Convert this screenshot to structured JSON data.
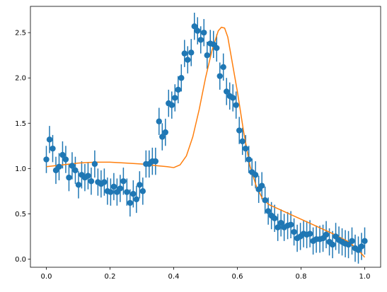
{
  "chart_data": {
    "type": "scatter",
    "title": "",
    "xlabel": "",
    "ylabel": "",
    "xlim": [
      -0.05,
      1.05
    ],
    "ylim": [
      -0.09,
      2.79
    ],
    "xticks": [
      0.0,
      0.2,
      0.4,
      0.6,
      0.8,
      1.0
    ],
    "xtick_labels": [
      "0.0",
      "0.2",
      "0.4",
      "0.6",
      "0.8",
      "1.0"
    ],
    "yticks": [
      0.0,
      0.5,
      1.0,
      1.5,
      2.0,
      2.5
    ],
    "ytick_labels": [
      "0.0",
      "0.5",
      "1.0",
      "1.5",
      "2.0",
      "2.5"
    ],
    "grid": false,
    "legend": "none",
    "colors": {
      "points": "#1f77b4",
      "curve": "#ff7f0e",
      "axes": "#000000"
    },
    "series": [
      {
        "kind": "errorbar",
        "x": [
          0.0,
          0.01,
          0.02,
          0.03,
          0.04,
          0.051,
          0.061,
          0.071,
          0.081,
          0.091,
          0.101,
          0.111,
          0.121,
          0.131,
          0.141,
          0.152,
          0.162,
          0.172,
          0.182,
          0.192,
          0.202,
          0.212,
          0.222,
          0.232,
          0.242,
          0.253,
          0.263,
          0.273,
          0.283,
          0.293,
          0.303,
          0.313,
          0.323,
          0.333,
          0.343,
          0.354,
          0.364,
          0.374,
          0.384,
          0.394,
          0.404,
          0.414,
          0.424,
          0.434,
          0.444,
          0.455,
          0.465,
          0.475,
          0.485,
          0.495,
          0.505,
          0.515,
          0.525,
          0.535,
          0.545,
          0.556,
          0.566,
          0.576,
          0.586,
          0.596,
          0.606,
          0.616,
          0.626,
          0.636,
          0.646,
          0.657,
          0.667,
          0.677,
          0.687,
          0.697,
          0.707,
          0.717,
          0.727,
          0.737,
          0.747,
          0.758,
          0.768,
          0.778,
          0.788,
          0.798,
          0.808,
          0.818,
          0.828,
          0.838,
          0.848,
          0.859,
          0.869,
          0.879,
          0.889,
          0.899,
          0.909,
          0.919,
          0.929,
          0.939,
          0.949,
          0.96,
          0.97,
          0.98,
          0.99,
          1.0
        ],
        "y": [
          1.1,
          1.32,
          1.22,
          0.98,
          1.02,
          1.15,
          1.1,
          0.9,
          1.03,
          0.98,
          0.82,
          0.93,
          0.9,
          0.92,
          0.86,
          1.05,
          0.85,
          0.83,
          0.85,
          0.75,
          0.74,
          0.8,
          0.74,
          0.78,
          0.86,
          0.74,
          0.62,
          0.72,
          0.66,
          0.82,
          0.75,
          1.05,
          1.05,
          1.08,
          1.08,
          1.52,
          1.35,
          1.4,
          1.72,
          1.7,
          1.78,
          1.87,
          2.0,
          2.27,
          2.2,
          2.28,
          2.57,
          2.52,
          2.42,
          2.5,
          2.25,
          2.38,
          2.37,
          2.33,
          2.02,
          2.12,
          1.85,
          1.8,
          1.78,
          1.7,
          1.42,
          1.3,
          1.22,
          1.1,
          0.96,
          0.93,
          0.77,
          0.81,
          0.65,
          0.53,
          0.48,
          0.45,
          0.35,
          0.4,
          0.35,
          0.37,
          0.38,
          0.3,
          0.23,
          0.25,
          0.28,
          0.27,
          0.28,
          0.2,
          0.22,
          0.22,
          0.23,
          0.27,
          0.19,
          0.16,
          0.25,
          0.21,
          0.19,
          0.17,
          0.16,
          0.2,
          0.12,
          0.1,
          0.14,
          0.2
        ],
        "yerr": 0.15
      },
      {
        "kind": "line",
        "x": [
          0.0,
          0.05,
          0.1,
          0.15,
          0.2,
          0.25,
          0.3,
          0.35,
          0.38,
          0.4,
          0.42,
          0.44,
          0.46,
          0.48,
          0.5,
          0.52,
          0.54,
          0.55,
          0.56,
          0.57,
          0.58,
          0.6,
          0.62,
          0.64,
          0.66,
          0.68,
          0.7,
          0.75,
          0.8,
          0.85,
          0.9,
          0.95,
          0.98,
          1.0
        ],
        "y": [
          1.02,
          1.04,
          1.06,
          1.07,
          1.07,
          1.06,
          1.05,
          1.03,
          1.02,
          1.01,
          1.04,
          1.14,
          1.35,
          1.65,
          2.0,
          2.3,
          2.52,
          2.56,
          2.55,
          2.45,
          2.25,
          1.85,
          1.4,
          1.02,
          0.8,
          0.66,
          0.6,
          0.52,
          0.44,
          0.36,
          0.28,
          0.19,
          0.1,
          0.02
        ]
      }
    ]
  }
}
